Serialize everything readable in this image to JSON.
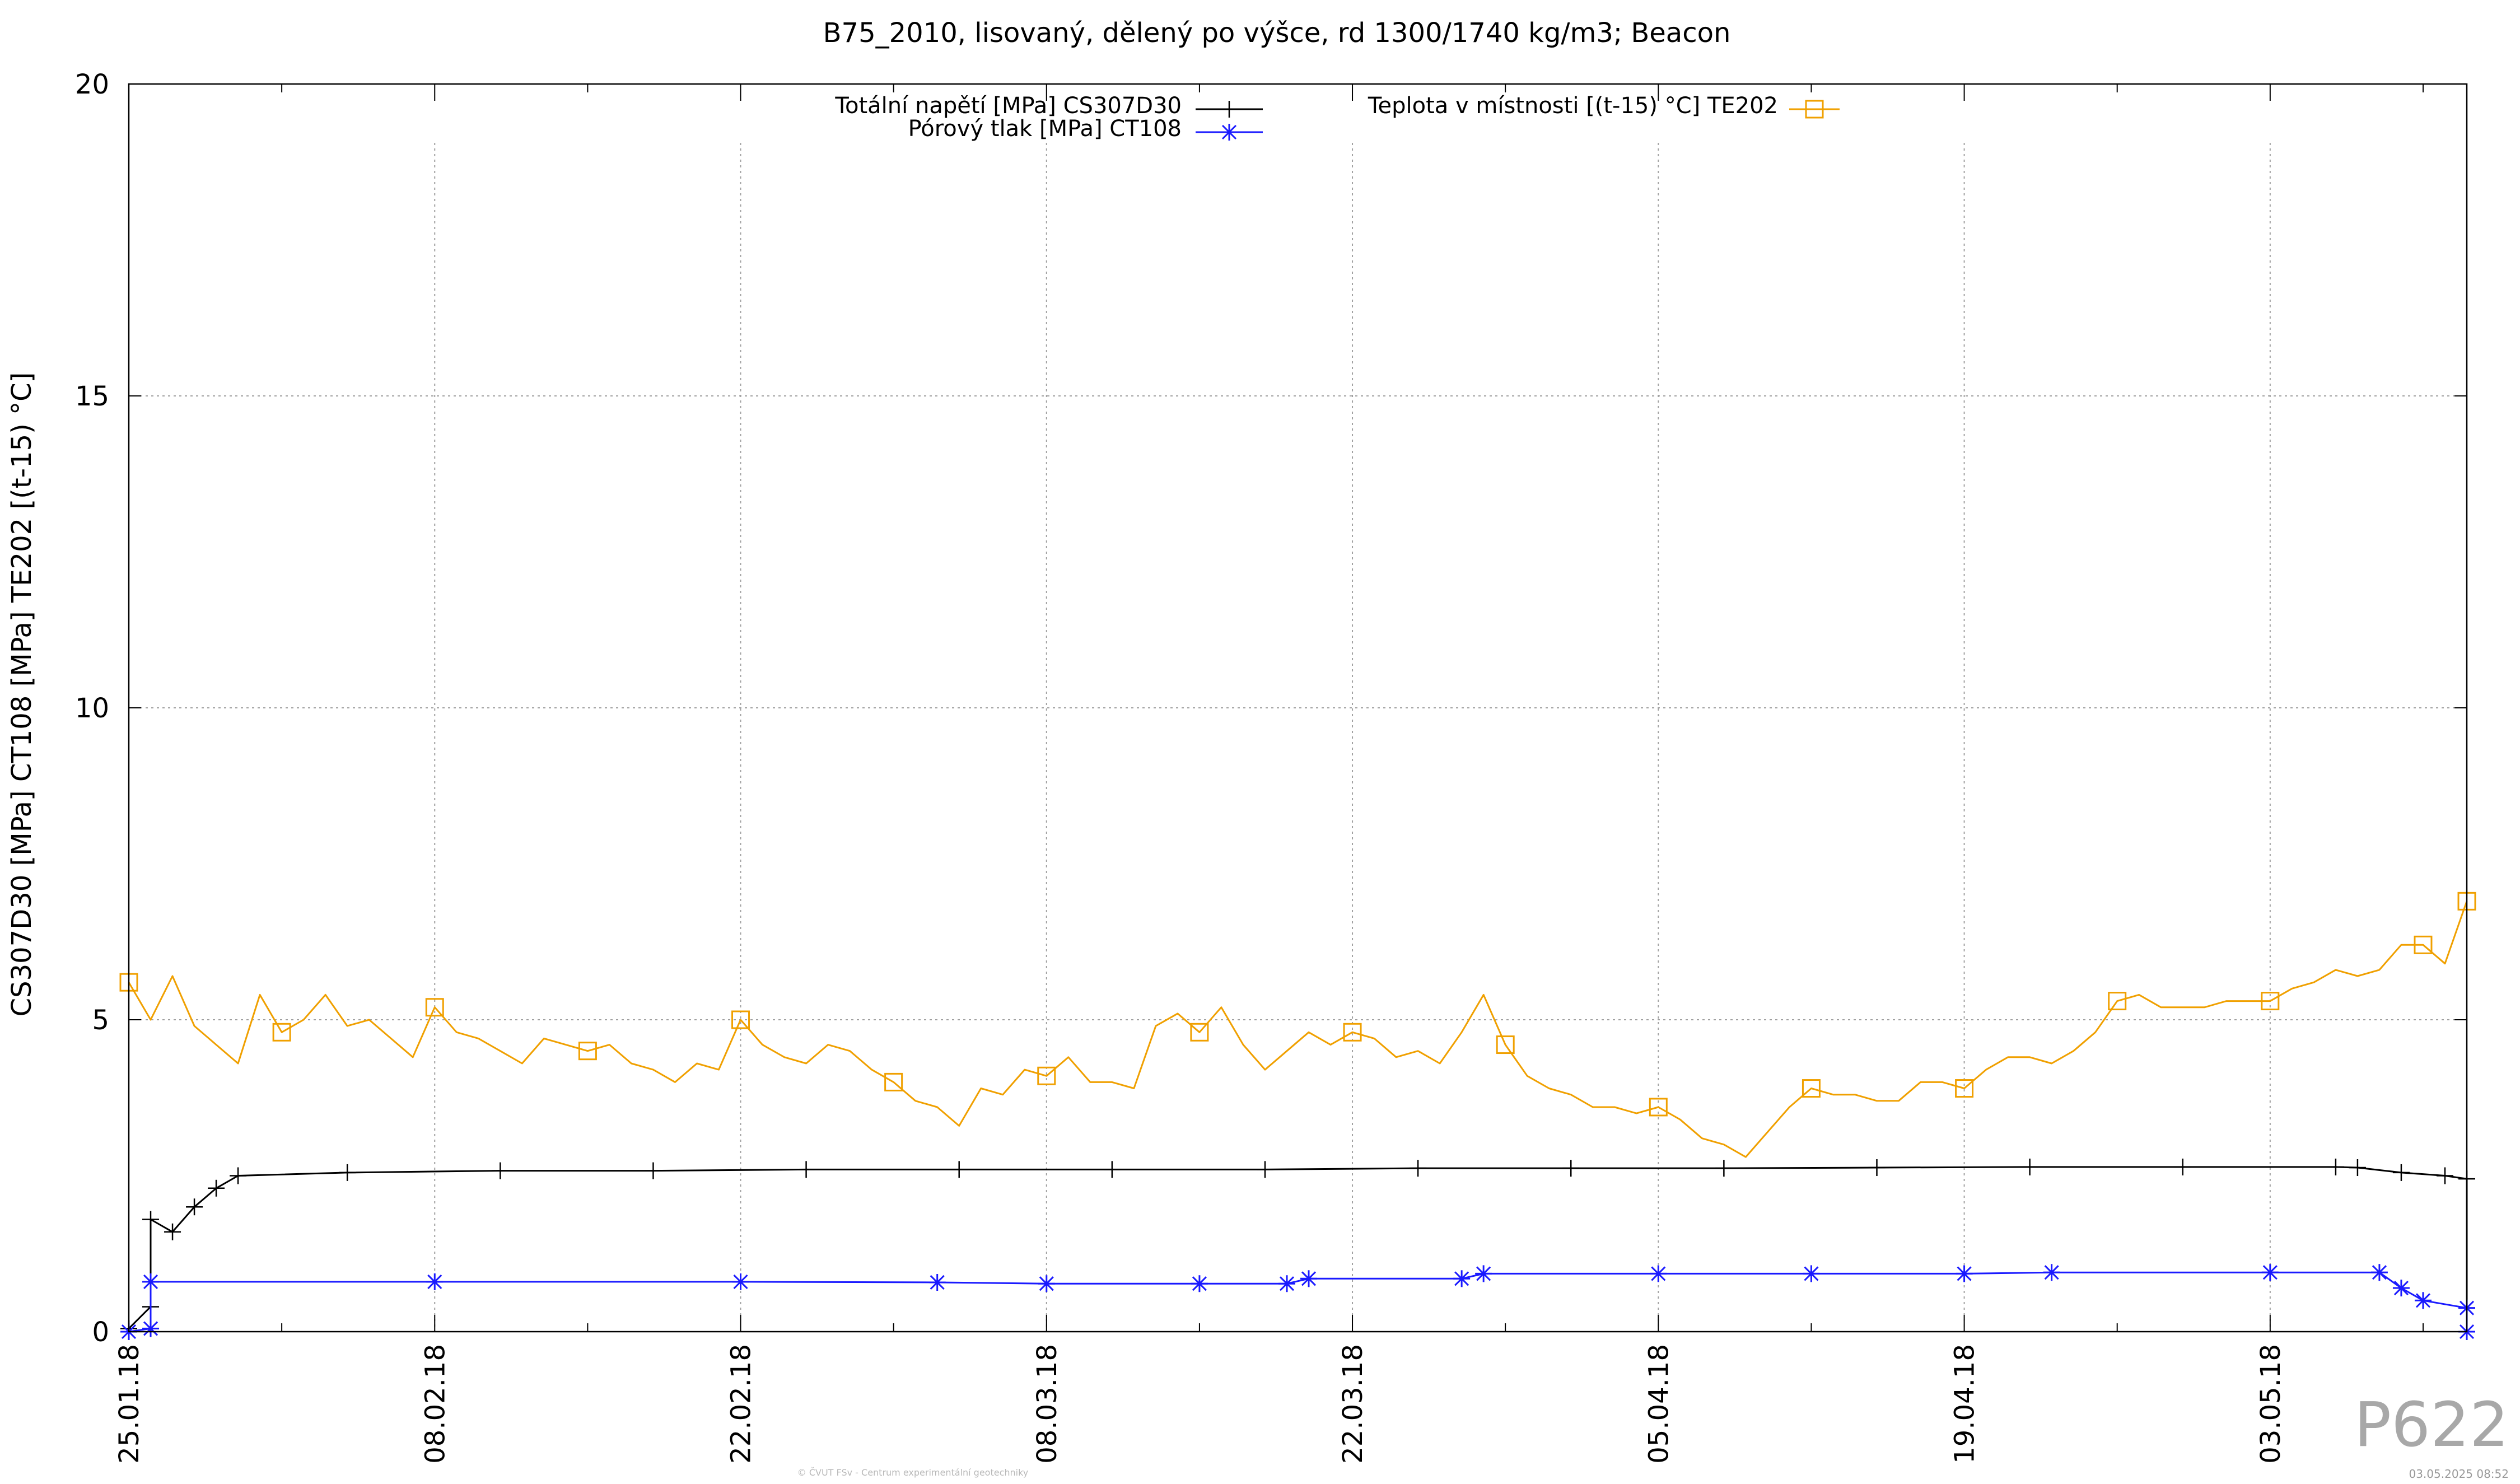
{
  "chart_data": {
    "type": "line",
    "title": "B75_2010, lisovaný, dělený po výšce, rd 1300/1740 kg/m3; Beacon",
    "ylabel": "CS307D30 [MPa] CT108 [MPa] TE202 [(t-15) °C]",
    "xlabel": "",
    "ylim": [
      0,
      20
    ],
    "xlim": [
      "2018-01-25",
      "2018-05-12"
    ],
    "y_ticks": [
      0,
      5,
      10,
      15,
      20
    ],
    "x_tick_labels": [
      "25.01.18",
      "08.02.18",
      "22.02.18",
      "08.03.18",
      "22.03.18",
      "05.04.18",
      "19.04.18",
      "03.05.18"
    ],
    "x_tick_dates": [
      "2018-01-25",
      "2018-02-08",
      "2018-02-22",
      "2018-03-08",
      "2018-03-22",
      "2018-04-05",
      "2018-04-19",
      "2018-05-03"
    ],
    "grid": true,
    "legend_position": "top",
    "series": [
      {
        "name": "Totální napětí [MPa] CS307D30",
        "color": "#000000",
        "marker": "plus",
        "x": [
          "2018-01-25",
          "2018-01-25",
          "2018-01-26",
          "2018-01-26",
          "2018-01-27",
          "2018-01-28",
          "2018-01-29",
          "2018-01-30",
          "2018-02-04",
          "2018-02-11",
          "2018-02-18",
          "2018-02-25",
          "2018-03-04",
          "2018-03-11",
          "2018-03-18",
          "2018-03-25",
          "2018-04-01",
          "2018-04-08",
          "2018-04-15",
          "2018-04-22",
          "2018-04-29",
          "2018-05-06",
          "2018-05-07",
          "2018-05-09",
          "2018-05-11",
          "2018-05-12",
          "2018-05-12"
        ],
        "y": [
          0,
          0.05,
          0.4,
          1.8,
          1.6,
          2.0,
          2.3,
          2.5,
          2.55,
          2.58,
          2.58,
          2.6,
          2.6,
          2.6,
          2.6,
          2.62,
          2.62,
          2.62,
          2.63,
          2.64,
          2.64,
          2.64,
          2.63,
          2.55,
          2.5,
          2.45,
          0
        ]
      },
      {
        "name": "Pórový tlak [MPa] CT108",
        "color": "#1a1aff",
        "marker": "star",
        "x": [
          "2018-01-25",
          "2018-01-26",
          "2018-01-26",
          "2018-02-08",
          "2018-02-22",
          "2018-03-03",
          "2018-03-08",
          "2018-03-15",
          "2018-03-19",
          "2018-03-20",
          "2018-03-27",
          "2018-03-28",
          "2018-04-05",
          "2018-04-12",
          "2018-04-19",
          "2018-04-23",
          "2018-05-03",
          "2018-05-08",
          "2018-05-09",
          "2018-05-10",
          "2018-05-12",
          "2018-05-12"
        ],
        "y": [
          0,
          0.05,
          0.8,
          0.8,
          0.8,
          0.79,
          0.77,
          0.77,
          0.77,
          0.85,
          0.85,
          0.93,
          0.93,
          0.93,
          0.93,
          0.95,
          0.95,
          0.95,
          0.7,
          0.5,
          0.38,
          0
        ]
      },
      {
        "name": "Teplota v místnosti [(t-15) °C] TE202",
        "color": "#f0a000",
        "marker": "square",
        "x": [
          "2018-01-25",
          "2018-01-26",
          "2018-01-27",
          "2018-01-28",
          "2018-01-29",
          "2018-01-30",
          "2018-01-31",
          "2018-02-01",
          "2018-02-02",
          "2018-02-03",
          "2018-02-04",
          "2018-02-05",
          "2018-02-06",
          "2018-02-07",
          "2018-02-08",
          "2018-02-09",
          "2018-02-10",
          "2018-02-11",
          "2018-02-12",
          "2018-02-13",
          "2018-02-14",
          "2018-02-15",
          "2018-02-16",
          "2018-02-17",
          "2018-02-18",
          "2018-02-19",
          "2018-02-20",
          "2018-02-21",
          "2018-02-22",
          "2018-02-23",
          "2018-02-24",
          "2018-02-25",
          "2018-02-26",
          "2018-02-27",
          "2018-02-28",
          "2018-03-01",
          "2018-03-02",
          "2018-03-03",
          "2018-03-04",
          "2018-03-05",
          "2018-03-06",
          "2018-03-07",
          "2018-03-08",
          "2018-03-09",
          "2018-03-10",
          "2018-03-11",
          "2018-03-12",
          "2018-03-13",
          "2018-03-14",
          "2018-03-15",
          "2018-03-16",
          "2018-03-17",
          "2018-03-18",
          "2018-03-19",
          "2018-03-20",
          "2018-03-21",
          "2018-03-22",
          "2018-03-23",
          "2018-03-24",
          "2018-03-25",
          "2018-03-26",
          "2018-03-27",
          "2018-03-28",
          "2018-03-29",
          "2018-03-30",
          "2018-03-31",
          "2018-04-01",
          "2018-04-02",
          "2018-04-03",
          "2018-04-04",
          "2018-04-05",
          "2018-04-06",
          "2018-04-07",
          "2018-04-08",
          "2018-04-09",
          "2018-04-10",
          "2018-04-11",
          "2018-04-12",
          "2018-04-13",
          "2018-04-14",
          "2018-04-15",
          "2018-04-16",
          "2018-04-17",
          "2018-04-18",
          "2018-04-19",
          "2018-04-20",
          "2018-04-21",
          "2018-04-22",
          "2018-04-23",
          "2018-04-24",
          "2018-04-25",
          "2018-04-26",
          "2018-04-27",
          "2018-04-28",
          "2018-04-29",
          "2018-04-30",
          "2018-05-01",
          "2018-05-02",
          "2018-05-03",
          "2018-05-04",
          "2018-05-05",
          "2018-05-06",
          "2018-05-07",
          "2018-05-08",
          "2018-05-09",
          "2018-05-10",
          "2018-05-11",
          "2018-05-12"
        ],
        "y": [
          5.6,
          5.0,
          5.7,
          4.9,
          4.6,
          4.3,
          5.4,
          4.8,
          5.0,
          5.4,
          4.9,
          5.0,
          4.7,
          4.4,
          5.2,
          4.8,
          4.7,
          4.5,
          4.3,
          4.7,
          4.6,
          4.5,
          4.6,
          4.3,
          4.2,
          4.0,
          4.3,
          4.2,
          5.0,
          4.6,
          4.4,
          4.3,
          4.6,
          4.5,
          4.2,
          4.0,
          3.7,
          3.6,
          3.3,
          3.9,
          3.8,
          4.2,
          4.1,
          4.4,
          4.0,
          4.0,
          3.9,
          4.9,
          5.1,
          4.8,
          5.2,
          4.6,
          4.2,
          4.5,
          4.8,
          4.6,
          4.8,
          4.7,
          4.4,
          4.5,
          4.3,
          4.8,
          5.4,
          4.6,
          4.1,
          3.9,
          3.8,
          3.6,
          3.6,
          3.5,
          3.6,
          3.4,
          3.1,
          3.0,
          2.8,
          3.2,
          3.6,
          3.9,
          3.8,
          3.8,
          3.7,
          3.7,
          4.0,
          4.0,
          3.9,
          4.2,
          4.4,
          4.4,
          4.3,
          4.5,
          4.8,
          5.3,
          5.4,
          5.2,
          5.2,
          5.2,
          5.3,
          5.3,
          5.3,
          5.5,
          5.6,
          5.8,
          5.7,
          5.8,
          6.2,
          6.2,
          5.9,
          6.9
        ]
      }
    ]
  },
  "watermark": "P622",
  "footer": {
    "copyright": "© ČVUT FSv - Centrum experimentální geotechniky",
    "timestamp": "03.05.2025 08:52"
  }
}
